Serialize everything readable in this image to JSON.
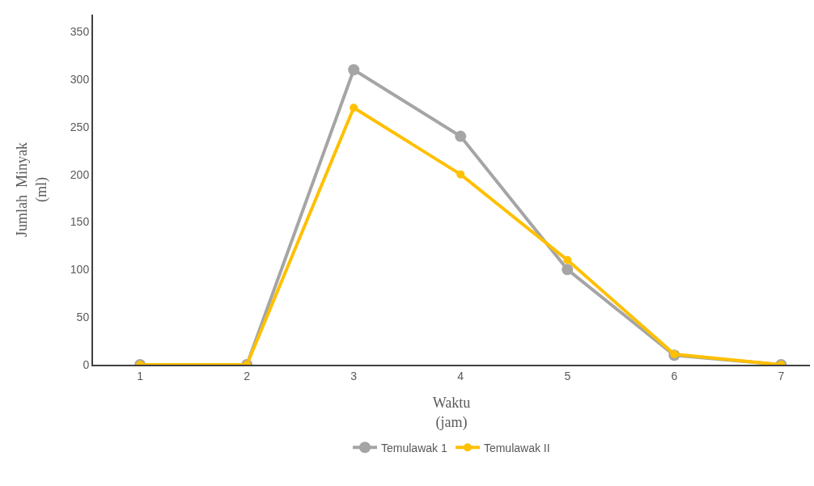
{
  "chart_data": {
    "type": "line",
    "xlabel": "Waktu\n(jam)",
    "ylabel": "Jumlah  Minyak\n(ml)",
    "categories": [
      "1",
      "2",
      "3",
      "4",
      "5",
      "6",
      "7"
    ],
    "series": [
      {
        "name": "Temulawak 1",
        "color": "#a5a5a5",
        "values": [
          0,
          0,
          310,
          240,
          100,
          10,
          0
        ]
      },
      {
        "name": "Temulawak II",
        "color": "#ffc000",
        "values": [
          0,
          0,
          270,
          200,
          110,
          11,
          0
        ]
      }
    ],
    "ylim": [
      0,
      368
    ],
    "yticks": [
      0,
      50,
      100,
      150,
      200,
      250,
      300,
      350
    ],
    "grid": false,
    "legend": "bottom",
    "marker": "circle",
    "line_style": "solid"
  }
}
